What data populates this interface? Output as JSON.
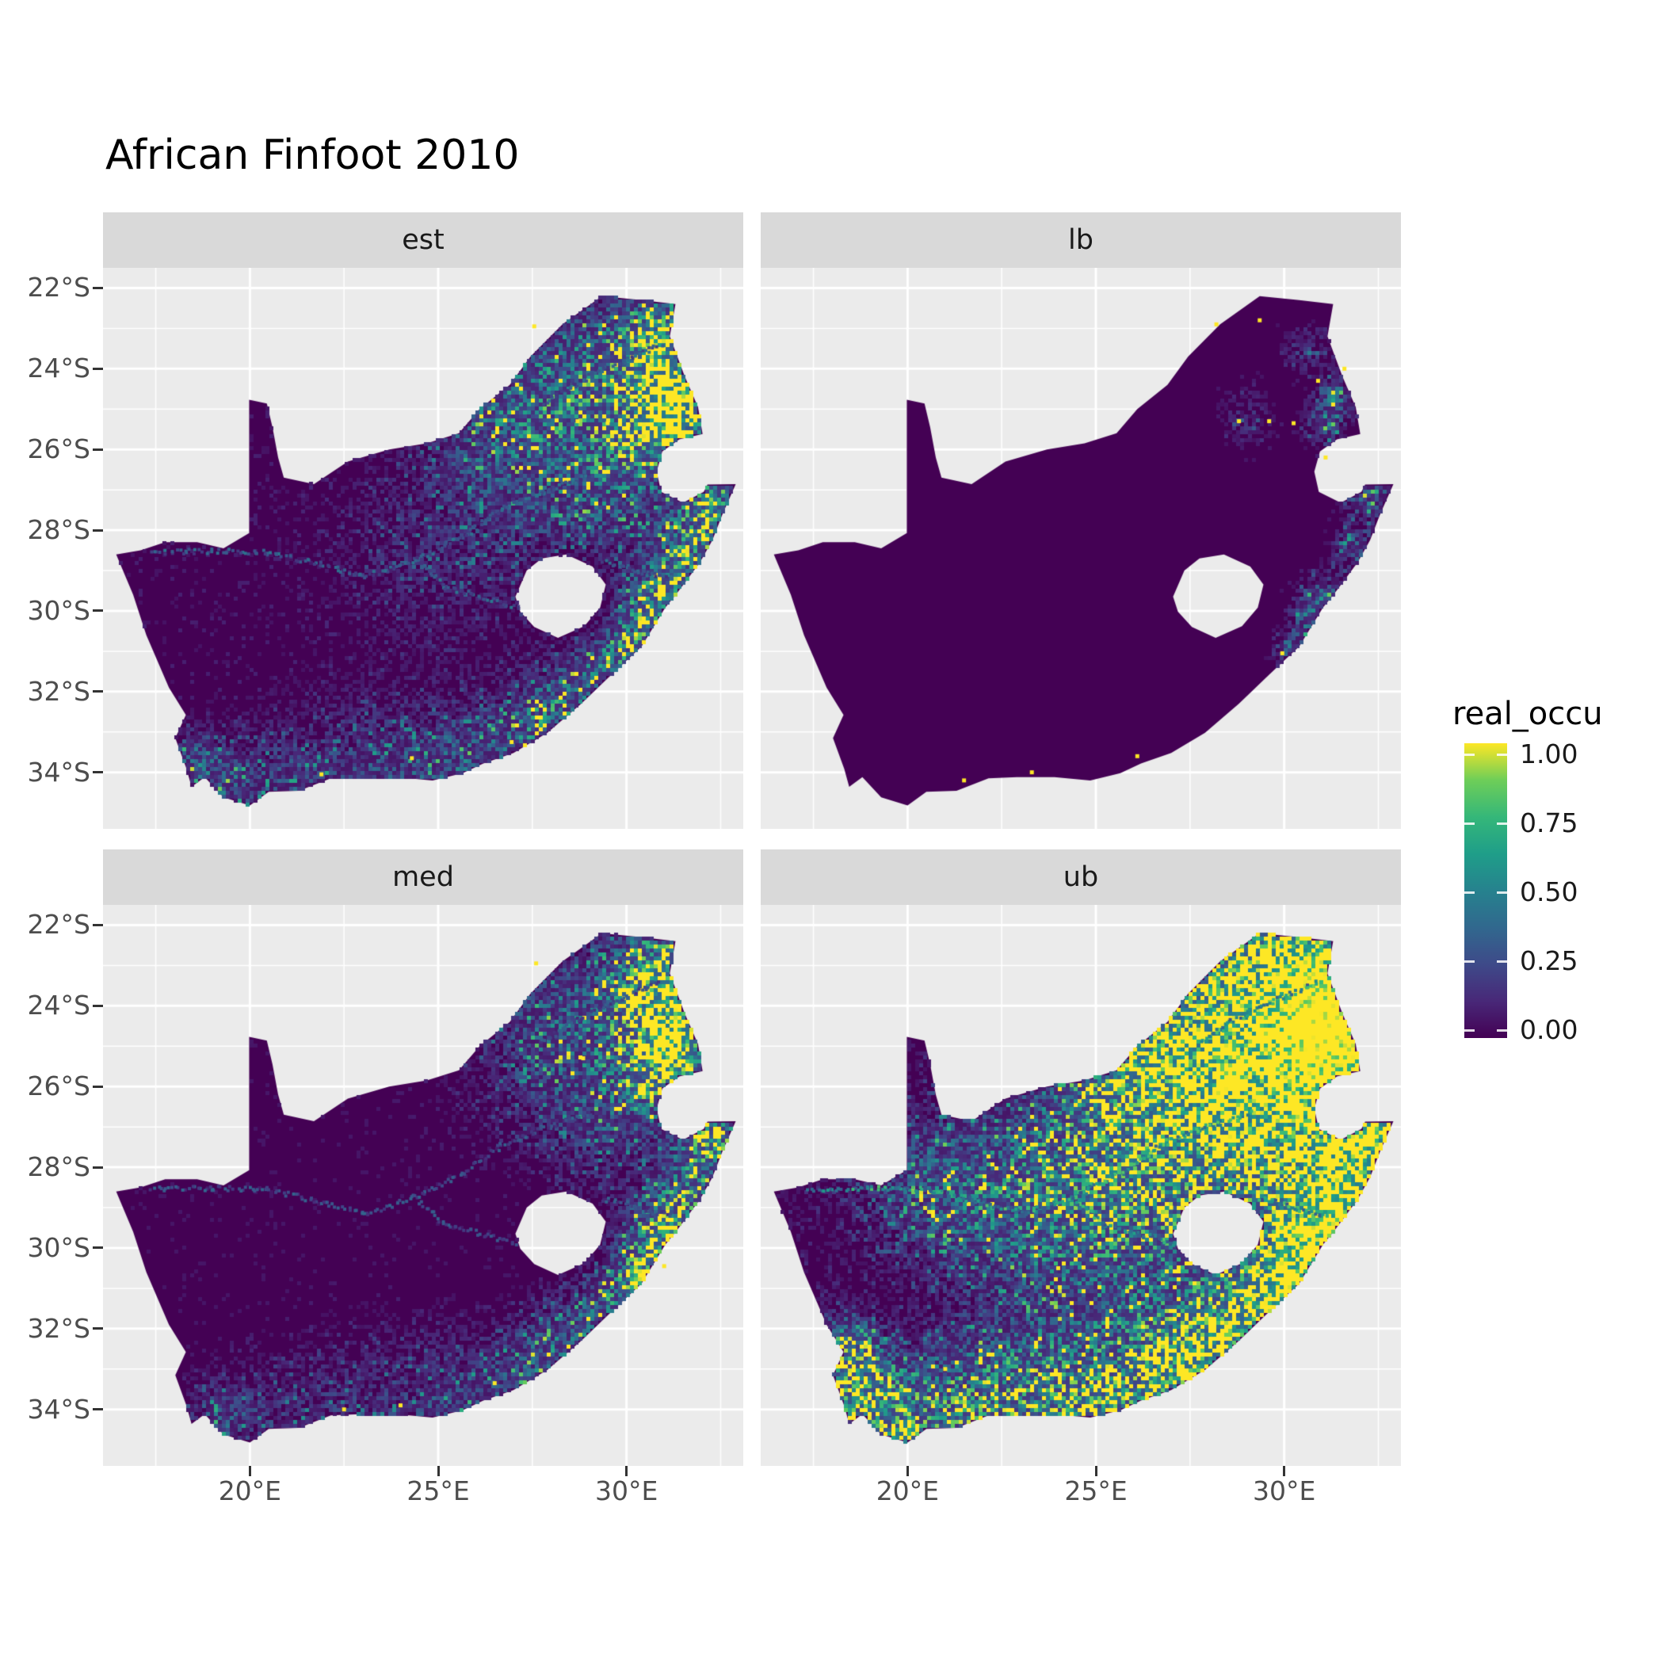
{
  "title": "African Finfoot 2010",
  "legend": {
    "title": "real_occu",
    "labels": [
      "1.00",
      "0.75",
      "0.50",
      "0.25",
      "0.00"
    ]
  },
  "axes": {
    "y_ticks": [
      "22°S",
      "24°S",
      "26°S",
      "28°S",
      "30°S",
      "32°S",
      "34°S"
    ],
    "x_ticks": [
      "20°E",
      "25°E",
      "30°E"
    ]
  },
  "colors": {
    "panel_bg": "#EBEBEB",
    "strip_bg": "#D9D9D9",
    "grid": "#FFFFFF",
    "axis_text": "#4D4D4D",
    "title_text": "#000000",
    "viridis": [
      "#440154",
      "#482878",
      "#3E4A89",
      "#31688E",
      "#26828E",
      "#1F9E89",
      "#35B779",
      "#6ECE58",
      "#FDE725"
    ]
  },
  "chart_data": {
    "type": "heatmap",
    "title": "African Finfoot 2010",
    "variable": "real_occu",
    "palette": "viridis",
    "scale": {
      "domain": [
        0,
        1
      ],
      "breaks": [
        0.0,
        0.25,
        0.5,
        0.75,
        1.0
      ]
    },
    "region": "South Africa (Lesotho excluded as hole, Eswatini notch on east)",
    "extent": {
      "lon": [
        16.1,
        33.1
      ],
      "lat": [
        21.5,
        35.4
      ]
    },
    "x_breaks_deg_east": [
      20,
      25,
      30
    ],
    "y_breaks_deg_south": [
      22,
      24,
      26,
      28,
      30,
      32,
      34
    ],
    "x_minor": [
      17.5,
      22.5,
      27.5,
      32.5
    ],
    "y_minor": [
      23,
      25,
      27,
      29,
      31,
      33
    ],
    "outline": [
      [
        16.45,
        28.6
      ],
      [
        17.1,
        28.5
      ],
      [
        17.75,
        28.3
      ],
      [
        18.6,
        28.3
      ],
      [
        19.3,
        28.45
      ],
      [
        19.98,
        28.07
      ],
      [
        19.98,
        24.77
      ],
      [
        20.45,
        24.86
      ],
      [
        20.6,
        25.45
      ],
      [
        20.75,
        26.2
      ],
      [
        20.9,
        26.7
      ],
      [
        21.7,
        26.86
      ],
      [
        22.6,
        26.3
      ],
      [
        23.7,
        26.0
      ],
      [
        24.7,
        25.85
      ],
      [
        25.55,
        25.6
      ],
      [
        26.1,
        25.0
      ],
      [
        26.9,
        24.4
      ],
      [
        27.45,
        23.7
      ],
      [
        28.3,
        22.9
      ],
      [
        29.35,
        22.2
      ],
      [
        30.4,
        22.3
      ],
      [
        31.3,
        22.4
      ],
      [
        31.15,
        23.2
      ],
      [
        31.55,
        24.2
      ],
      [
        31.9,
        24.95
      ],
      [
        32.02,
        25.62
      ],
      [
        31.4,
        25.75
      ],
      [
        30.95,
        26.05
      ],
      [
        30.8,
        26.55
      ],
      [
        30.92,
        27.05
      ],
      [
        31.5,
        27.32
      ],
      [
        32.05,
        27.05
      ],
      [
        32.15,
        26.87
      ],
      [
        32.9,
        26.86
      ],
      [
        32.55,
        27.6
      ],
      [
        32.28,
        28.25
      ],
      [
        31.95,
        28.8
      ],
      [
        31.35,
        29.55
      ],
      [
        31.03,
        29.92
      ],
      [
        30.4,
        30.88
      ],
      [
        29.6,
        31.58
      ],
      [
        28.8,
        32.3
      ],
      [
        27.9,
        33.02
      ],
      [
        27.0,
        33.52
      ],
      [
        26.2,
        33.78
      ],
      [
        25.65,
        34.02
      ],
      [
        24.85,
        34.2
      ],
      [
        23.9,
        34.12
      ],
      [
        22.9,
        34.12
      ],
      [
        22.15,
        34.15
      ],
      [
        21.3,
        34.46
      ],
      [
        20.5,
        34.48
      ],
      [
        20.0,
        34.82
      ],
      [
        19.3,
        34.62
      ],
      [
        18.8,
        34.12
      ],
      [
        18.45,
        34.36
      ],
      [
        18.32,
        33.92
      ],
      [
        18.02,
        33.15
      ],
      [
        18.3,
        32.58
      ],
      [
        17.85,
        31.9
      ],
      [
        17.25,
        30.6
      ],
      [
        16.9,
        29.6
      ]
    ],
    "lesotho_hole": [
      [
        27.05,
        29.65
      ],
      [
        27.35,
        29.0
      ],
      [
        27.75,
        28.7
      ],
      [
        28.4,
        28.6
      ],
      [
        29.1,
        28.9
      ],
      [
        29.45,
        29.35
      ],
      [
        29.3,
        29.92
      ],
      [
        28.88,
        30.38
      ],
      [
        28.18,
        30.67
      ],
      [
        27.55,
        30.4
      ],
      [
        27.18,
        30.02
      ]
    ],
    "rivers": [
      [
        [
          24.4,
          28.75
        ],
        [
          23.1,
          29.15
        ],
        [
          21.9,
          28.85
        ],
        [
          20.4,
          28.55
        ],
        [
          19.0,
          28.52
        ],
        [
          17.4,
          28.55
        ]
      ],
      [
        [
          29.1,
          26.65
        ],
        [
          27.8,
          27.05
        ],
        [
          26.7,
          27.45
        ],
        [
          25.7,
          28.15
        ],
        [
          24.4,
          28.75
        ]
      ],
      [
        [
          28.4,
          30.25
        ],
        [
          27.4,
          30.0
        ],
        [
          26.3,
          29.7
        ],
        [
          25.2,
          29.4
        ],
        [
          24.4,
          28.75
        ]
      ],
      [
        [
          27.8,
          24.9
        ],
        [
          28.6,
          24.4
        ],
        [
          29.4,
          24.0
        ],
        [
          30.2,
          23.7
        ],
        [
          30.9,
          23.4
        ]
      ],
      [
        [
          29.4,
          28.8
        ],
        [
          30.0,
          28.9
        ],
        [
          30.6,
          29.1
        ],
        [
          31.2,
          29.2
        ]
      ]
    ],
    "facets": [
      {
        "id": "est",
        "label": "est",
        "seed": 11,
        "base": 0.04,
        "gain": 1.0,
        "river_amp": 0.3,
        "hotspots": [
          [
            31.0,
            23.2,
            0.6,
            0.85
          ],
          [
            30.55,
            23.85,
            0.8,
            0.5
          ],
          [
            31.35,
            24.6,
            0.5,
            1.0
          ],
          [
            31.2,
            25.3,
            0.6,
            0.95
          ],
          [
            30.7,
            25.65,
            0.8,
            0.55
          ],
          [
            29.3,
            24.3,
            1.4,
            0.3
          ],
          [
            27.8,
            24.6,
            1.6,
            0.25
          ],
          [
            26.3,
            25.3,
            1.2,
            0.18
          ],
          [
            32.2,
            27.2,
            0.5,
            0.8
          ],
          [
            31.9,
            28.3,
            0.6,
            0.6
          ],
          [
            31.3,
            29.2,
            0.6,
            0.55
          ],
          [
            30.8,
            30.0,
            0.55,
            0.8
          ],
          [
            30.2,
            30.9,
            0.5,
            0.6
          ],
          [
            29.4,
            31.5,
            0.6,
            0.4
          ],
          [
            28.4,
            32.4,
            0.7,
            0.35
          ],
          [
            27.5,
            33.0,
            0.8,
            0.3
          ],
          [
            25.8,
            33.8,
            1.0,
            0.28
          ],
          [
            23.5,
            34.0,
            1.2,
            0.22
          ],
          [
            21.0,
            34.3,
            1.0,
            0.22
          ],
          [
            19.2,
            34.2,
            0.6,
            0.3
          ],
          [
            18.5,
            33.6,
            0.4,
            0.3
          ],
          [
            28.9,
            26.3,
            1.2,
            0.15
          ],
          [
            29.8,
            27.4,
            1.0,
            0.2
          ],
          [
            26.8,
            27.8,
            1.5,
            0.12
          ],
          [
            24.5,
            28.5,
            1.5,
            0.1
          ]
        ],
        "dots": [
          [
            28.7,
            25.3
          ],
          [
            29.5,
            25.35
          ],
          [
            30.05,
            25.4
          ],
          [
            27.55,
            22.95
          ],
          [
            24.3,
            33.65
          ],
          [
            26.95,
            33.25
          ],
          [
            21.9,
            34.05
          ]
        ]
      },
      {
        "id": "lb",
        "label": "lb",
        "seed": 22,
        "base": 0.015,
        "gain": 0.8,
        "river_amp": 0.0,
        "hotspots": [
          [
            31.35,
            24.7,
            0.35,
            0.5
          ],
          [
            31.1,
            25.4,
            0.35,
            0.45
          ],
          [
            32.2,
            27.2,
            0.35,
            0.5
          ],
          [
            31.9,
            28.4,
            0.4,
            0.4
          ],
          [
            31.05,
            29.5,
            0.35,
            0.3
          ],
          [
            30.8,
            30.1,
            0.4,
            0.55
          ],
          [
            30.2,
            30.95,
            0.35,
            0.4
          ],
          [
            29.0,
            25.2,
            0.5,
            0.18
          ],
          [
            30.6,
            23.5,
            0.4,
            0.25
          ]
        ],
        "dots": [
          [
            28.2,
            22.9
          ],
          [
            29.35,
            22.8
          ],
          [
            28.8,
            25.3
          ],
          [
            29.6,
            25.3
          ],
          [
            30.25,
            25.35
          ],
          [
            30.9,
            24.3
          ],
          [
            31.6,
            24.0
          ],
          [
            26.1,
            33.6
          ],
          [
            23.3,
            34.0
          ],
          [
            21.5,
            34.2
          ],
          [
            29.95,
            31.05
          ],
          [
            31.1,
            26.2
          ]
        ]
      },
      {
        "id": "med",
        "label": "med",
        "seed": 33,
        "base": 0.03,
        "gain": 0.95,
        "river_amp": 0.25,
        "hotspots": [
          [
            31.0,
            23.3,
            0.7,
            1.1
          ],
          [
            30.6,
            23.9,
            0.8,
            0.45
          ],
          [
            31.35,
            24.6,
            0.55,
            1.15
          ],
          [
            31.2,
            25.35,
            0.6,
            1.05
          ],
          [
            30.7,
            25.7,
            0.8,
            0.5
          ],
          [
            29.3,
            24.3,
            1.3,
            0.25
          ],
          [
            27.8,
            24.7,
            1.5,
            0.2
          ],
          [
            32.2,
            27.2,
            0.5,
            0.9
          ],
          [
            31.9,
            28.35,
            0.6,
            0.6
          ],
          [
            31.3,
            29.25,
            0.6,
            0.5
          ],
          [
            30.8,
            30.0,
            0.6,
            0.9
          ],
          [
            30.2,
            30.9,
            0.5,
            0.6
          ],
          [
            29.4,
            31.5,
            0.6,
            0.35
          ],
          [
            28.4,
            32.4,
            0.7,
            0.3
          ],
          [
            27.5,
            33.0,
            0.8,
            0.25
          ],
          [
            25.8,
            33.8,
            1.0,
            0.25
          ],
          [
            23.5,
            34.0,
            1.2,
            0.18
          ],
          [
            21.0,
            34.3,
            1.0,
            0.18
          ],
          [
            19.2,
            34.2,
            0.6,
            0.28
          ],
          [
            28.9,
            26.3,
            1.2,
            0.12
          ],
          [
            29.8,
            27.4,
            1.0,
            0.15
          ]
        ],
        "dots": [
          [
            28.85,
            25.3
          ],
          [
            29.8,
            25.4
          ],
          [
            27.6,
            22.95
          ],
          [
            31.0,
            30.45
          ],
          [
            26.5,
            33.35
          ],
          [
            24.0,
            33.9
          ],
          [
            22.5,
            34.0
          ]
        ]
      },
      {
        "id": "ub",
        "label": "ub",
        "seed": 44,
        "base": 0.05,
        "gain": 1.15,
        "river_amp": 0.55,
        "hotspots": [
          [
            30.9,
            23.2,
            1.1,
            1.3
          ],
          [
            31.4,
            24.5,
            1.0,
            1.4
          ],
          [
            31.2,
            25.5,
            1.0,
            1.2
          ],
          [
            30.0,
            24.2,
            1.6,
            0.8
          ],
          [
            28.6,
            24.6,
            1.8,
            0.6
          ],
          [
            27.0,
            25.2,
            1.5,
            0.5
          ],
          [
            25.8,
            25.6,
            1.2,
            0.4
          ],
          [
            32.2,
            27.1,
            0.7,
            1.3
          ],
          [
            31.8,
            28.3,
            0.9,
            1.1
          ],
          [
            31.2,
            29.3,
            0.8,
            1.0
          ],
          [
            30.7,
            30.1,
            0.8,
            1.3
          ],
          [
            30.1,
            31.0,
            0.7,
            1.0
          ],
          [
            29.2,
            31.7,
            0.8,
            0.8
          ],
          [
            28.2,
            32.5,
            0.9,
            0.7
          ],
          [
            27.3,
            33.1,
            0.9,
            0.6
          ],
          [
            25.8,
            33.8,
            1.2,
            0.55
          ],
          [
            23.8,
            33.9,
            1.3,
            0.5
          ],
          [
            21.5,
            34.1,
            1.2,
            0.5
          ],
          [
            19.3,
            34.2,
            0.8,
            0.7
          ],
          [
            18.6,
            33.2,
            0.6,
            0.6
          ],
          [
            18.4,
            32.4,
            0.5,
            0.5
          ],
          [
            26.8,
            28.5,
            2.2,
            0.45
          ],
          [
            29.0,
            26.7,
            1.5,
            0.45
          ],
          [
            29.8,
            27.5,
            1.2,
            0.5
          ],
          [
            24.8,
            28.6,
            1.6,
            0.28
          ],
          [
            23.0,
            29.0,
            1.5,
            0.22
          ],
          [
            20.8,
            28.5,
            1.2,
            0.28
          ]
        ],
        "dots": [
          [
            27.0,
            29.0
          ],
          [
            24.0,
            30.5
          ],
          [
            21.0,
            33.0
          ]
        ]
      }
    ]
  }
}
